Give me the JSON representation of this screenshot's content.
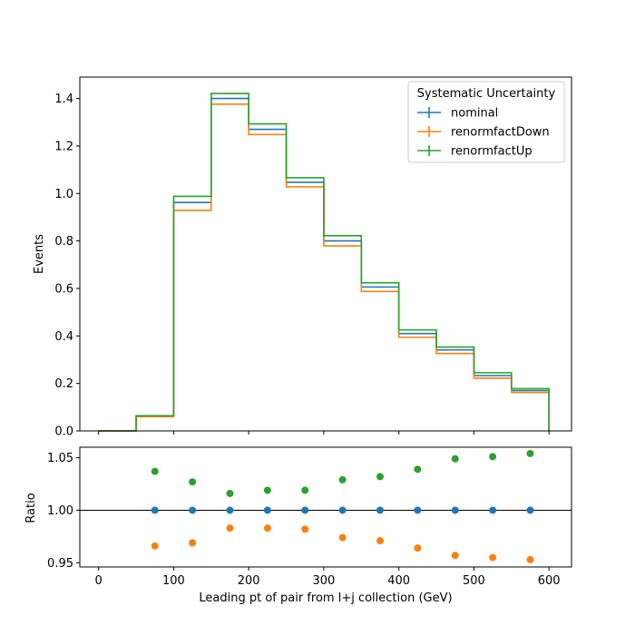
{
  "chart_data": [
    {
      "type": "line",
      "style": "step histogram",
      "bin_edges": [
        0,
        50,
        100,
        150,
        200,
        250,
        300,
        350,
        400,
        450,
        500,
        550,
        600
      ],
      "series": [
        {
          "name": "nominal",
          "color": "#1f77b4",
          "values": [
            0.0,
            0.062,
            0.962,
            1.4,
            1.27,
            1.047,
            0.8,
            0.606,
            0.41,
            0.341,
            0.233,
            0.17
          ]
        },
        {
          "name": "renormfactDown",
          "color": "#ff7f0e",
          "values": [
            0.0,
            0.06,
            0.929,
            1.376,
            1.248,
            1.028,
            0.779,
            0.587,
            0.394,
            0.326,
            0.222,
            0.162
          ]
        },
        {
          "name": "renormfactUp",
          "color": "#2ca02c",
          "values": [
            0.0,
            0.064,
            0.988,
            1.421,
            1.293,
            1.066,
            0.822,
            0.624,
            0.425,
            0.353,
            0.245,
            0.178
          ]
        }
      ],
      "xlabel": "",
      "ylabel": "Events",
      "xlim": [
        -25,
        630
      ],
      "ylim": [
        0,
        1.49
      ],
      "yticks": [
        "0.0",
        "0.2",
        "0.4",
        "0.6",
        "0.8",
        "1.0",
        "1.2",
        "1.4"
      ],
      "legend": {
        "title": "Systematic Uncertainty",
        "placement": "top-right"
      },
      "grid": false
    },
    {
      "type": "scatter",
      "x": [
        75,
        125,
        175,
        225,
        275,
        325,
        375,
        425,
        475,
        525,
        575
      ],
      "series": [
        {
          "name": "nominal",
          "color": "#1f77b4",
          "values": [
            1.0,
            1.0,
            1.0,
            1.0,
            1.0,
            1.0,
            1.0,
            1.0,
            1.0,
            1.0,
            1.0
          ]
        },
        {
          "name": "renormfactDown",
          "color": "#ff7f0e",
          "values": [
            0.966,
            0.969,
            0.983,
            0.983,
            0.982,
            0.974,
            0.971,
            0.964,
            0.957,
            0.955,
            0.953
          ]
        },
        {
          "name": "renormfactUp",
          "color": "#2ca02c",
          "values": [
            1.037,
            1.027,
            1.016,
            1.019,
            1.019,
            1.029,
            1.032,
            1.039,
            1.049,
            1.051,
            1.054
          ]
        }
      ],
      "reference_line": 1.0,
      "xlabel": "Leading pt of pair from l+j collection (GeV)",
      "ylabel": "Ratio",
      "xlim": [
        -25,
        630
      ],
      "ylim": [
        0.946,
        1.06
      ],
      "xticks": [
        "0",
        "100",
        "200",
        "300",
        "400",
        "500",
        "600"
      ],
      "yticks": [
        "0.95",
        "1.00",
        "1.05"
      ],
      "grid": false
    }
  ]
}
